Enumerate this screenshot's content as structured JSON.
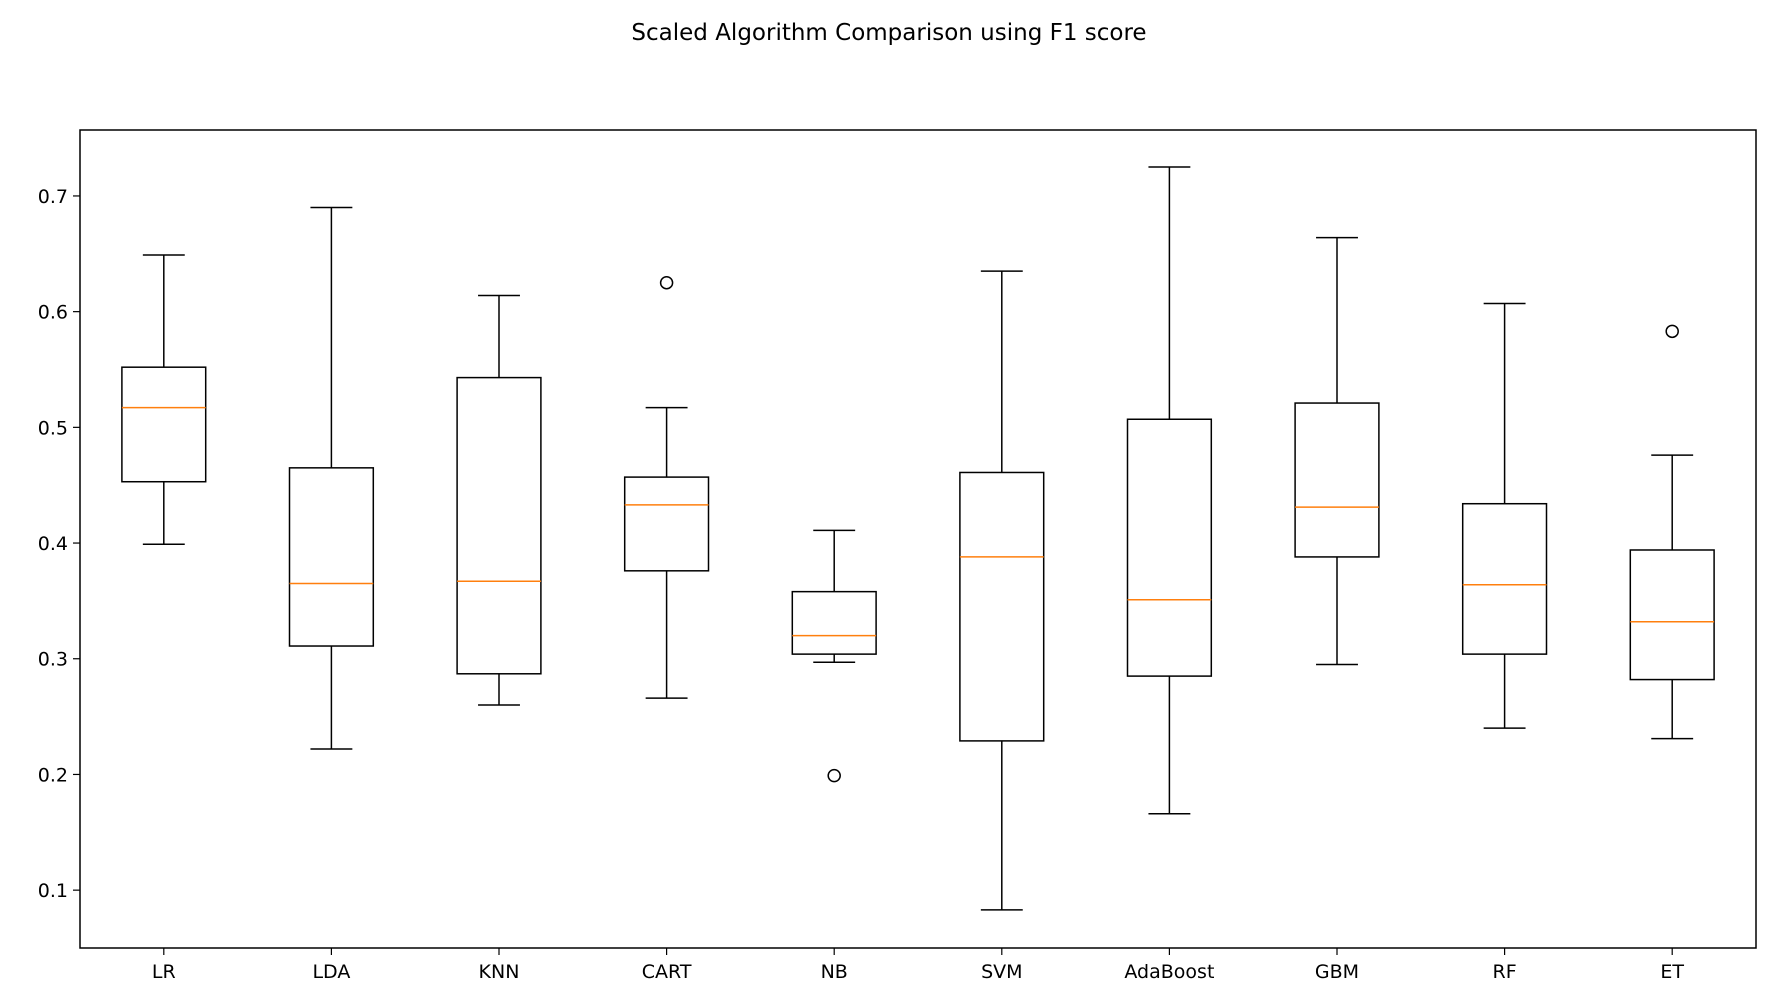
{
  "chart_data": {
    "type": "box",
    "title": "Scaled Algorithm Comparison using F1 score",
    "xlabel": "",
    "ylabel": "",
    "ylim": [
      0.05,
      0.757
    ],
    "yticks": [
      0.1,
      0.2,
      0.3,
      0.4,
      0.5,
      0.6,
      0.7
    ],
    "grid": false,
    "colors": {
      "box": "#000000",
      "median": "#ff7f0e",
      "background": "#ffffff"
    },
    "categories": [
      "LR",
      "LDA",
      "KNN",
      "CART",
      "NB",
      "SVM",
      "AdaBoost",
      "GBM",
      "RF",
      "ET"
    ],
    "boxes": [
      {
        "name": "LR",
        "whisker_low": 0.399,
        "q1": 0.453,
        "median": 0.517,
        "q3": 0.552,
        "whisker_high": 0.649,
        "outliers": []
      },
      {
        "name": "LDA",
        "whisker_low": 0.222,
        "q1": 0.311,
        "median": 0.365,
        "q3": 0.465,
        "whisker_high": 0.69,
        "outliers": []
      },
      {
        "name": "KNN",
        "whisker_low": 0.26,
        "q1": 0.287,
        "median": 0.367,
        "q3": 0.543,
        "whisker_high": 0.614,
        "outliers": []
      },
      {
        "name": "CART",
        "whisker_low": 0.266,
        "q1": 0.376,
        "median": 0.433,
        "q3": 0.457,
        "whisker_high": 0.517,
        "outliers": [
          0.625
        ]
      },
      {
        "name": "NB",
        "whisker_low": 0.297,
        "q1": 0.304,
        "median": 0.32,
        "q3": 0.358,
        "whisker_high": 0.411,
        "outliers": [
          0.199
        ]
      },
      {
        "name": "SVM",
        "whisker_low": 0.083,
        "q1": 0.229,
        "median": 0.388,
        "q3": 0.461,
        "whisker_high": 0.635,
        "outliers": []
      },
      {
        "name": "AdaBoost",
        "whisker_low": 0.166,
        "q1": 0.285,
        "median": 0.351,
        "q3": 0.507,
        "whisker_high": 0.725,
        "outliers": []
      },
      {
        "name": "GBM",
        "whisker_low": 0.295,
        "q1": 0.388,
        "median": 0.431,
        "q3": 0.521,
        "whisker_high": 0.664,
        "outliers": []
      },
      {
        "name": "RF",
        "whisker_low": 0.24,
        "q1": 0.304,
        "median": 0.364,
        "q3": 0.434,
        "whisker_high": 0.607,
        "outliers": []
      },
      {
        "name": "ET",
        "whisker_low": 0.231,
        "q1": 0.282,
        "median": 0.332,
        "q3": 0.394,
        "whisker_high": 0.476,
        "outliers": [
          0.583
        ]
      }
    ]
  }
}
